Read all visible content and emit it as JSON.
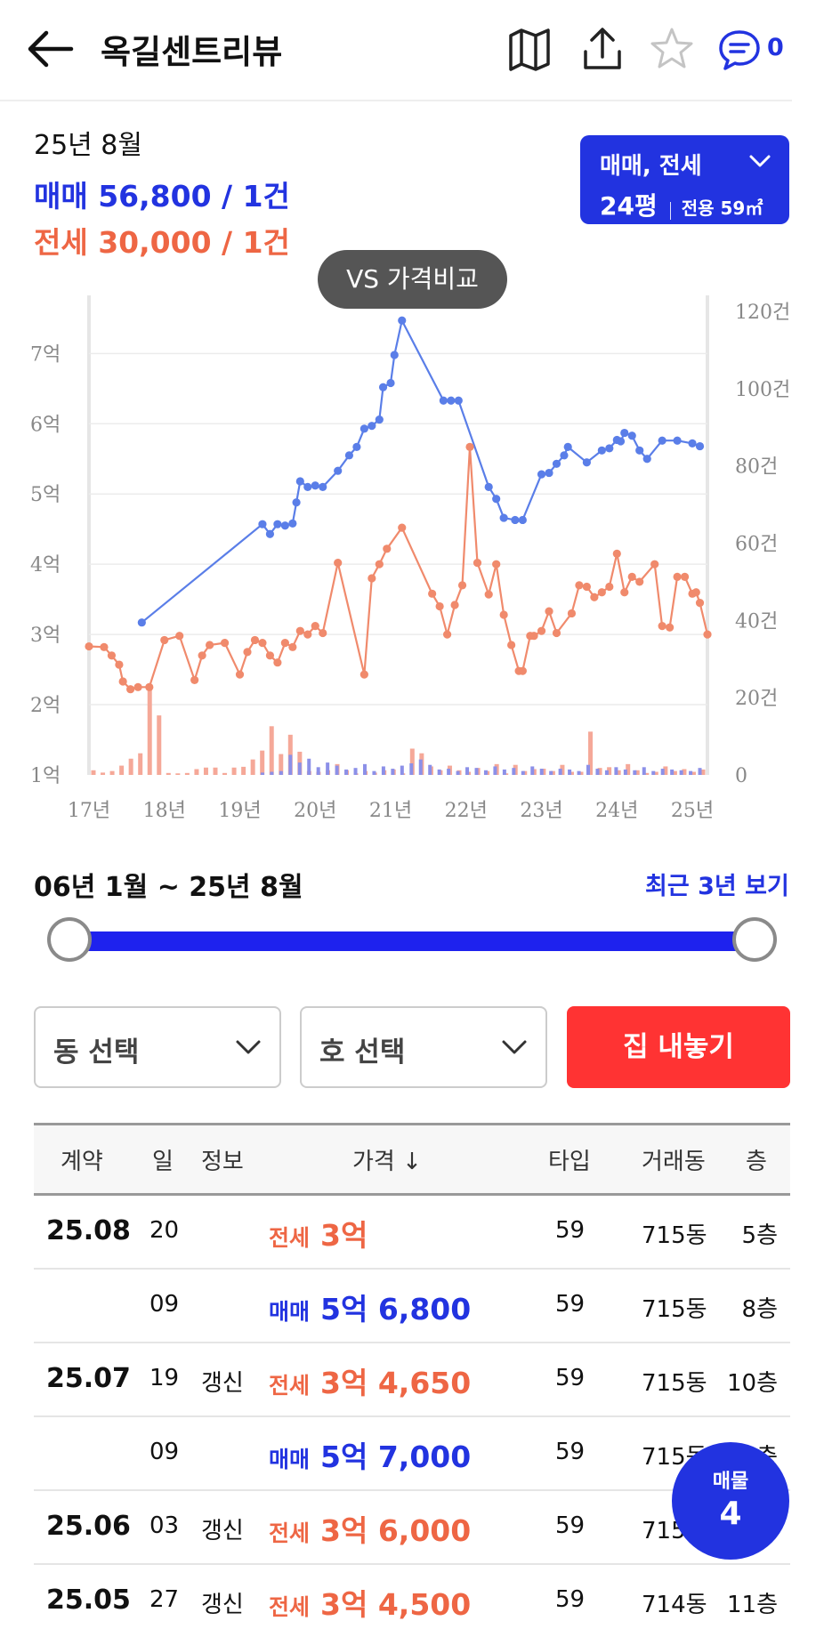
{
  "header": {
    "title": "옥길센트리뷰",
    "chat_count": "0"
  },
  "summary": {
    "date": "25년 8월",
    "sale": "매매 56,800 / 1건",
    "jeonse": "전세 30,000 / 1건"
  },
  "type_selector": {
    "line1": "매매, 전세",
    "pyeong": "24평",
    "area": "전용 59㎡"
  },
  "vs_button": "VS 가격비교",
  "chart_data": {
    "type": "line",
    "x_ticks": [
      "17년",
      "18년",
      "19년",
      "20년",
      "21년",
      "22년",
      "23년",
      "24년",
      "25년"
    ],
    "y_left_ticks": [
      "1억",
      "2억",
      "3억",
      "4억",
      "5억",
      "6억",
      "7억"
    ],
    "y_left_range": [
      1,
      7.6
    ],
    "y_right_ticks": [
      "0",
      "20건",
      "40건",
      "60건",
      "80건",
      "100건",
      "120건"
    ],
    "y_right_range": [
      0,
      120
    ],
    "x_range": [
      2017.0,
      2025.2
    ],
    "grid": true,
    "series": [
      {
        "key": "sale",
        "color": "#5a7ee8",
        "points": [
          [
            2017.7,
            3.17
          ],
          [
            2019.3,
            4.57
          ],
          [
            2019.4,
            4.43
          ],
          [
            2019.5,
            4.57
          ],
          [
            2019.6,
            4.55
          ],
          [
            2019.7,
            4.58
          ],
          [
            2019.75,
            4.88
          ],
          [
            2019.8,
            5.18
          ],
          [
            2019.9,
            5.1
          ],
          [
            2020.0,
            5.12
          ],
          [
            2020.1,
            5.1
          ],
          [
            2020.3,
            5.33
          ],
          [
            2020.45,
            5.55
          ],
          [
            2020.55,
            5.67
          ],
          [
            2020.65,
            5.93
          ],
          [
            2020.75,
            5.97
          ],
          [
            2020.85,
            6.06
          ],
          [
            2020.9,
            6.52
          ],
          [
            2021.0,
            6.58
          ],
          [
            2021.05,
            6.98
          ],
          [
            2021.15,
            7.47
          ],
          [
            2021.7,
            6.33
          ],
          [
            2021.8,
            6.33
          ],
          [
            2021.9,
            6.33
          ],
          [
            2022.3,
            5.1
          ],
          [
            2022.4,
            4.93
          ],
          [
            2022.5,
            4.66
          ],
          [
            2022.65,
            4.63
          ],
          [
            2022.75,
            4.63
          ],
          [
            2023.0,
            5.28
          ],
          [
            2023.1,
            5.3
          ],
          [
            2023.2,
            5.43
          ],
          [
            2023.3,
            5.55
          ],
          [
            2023.35,
            5.67
          ],
          [
            2023.6,
            5.45
          ],
          [
            2023.8,
            5.62
          ],
          [
            2023.9,
            5.65
          ],
          [
            2024.0,
            5.77
          ],
          [
            2024.05,
            5.75
          ],
          [
            2024.1,
            5.87
          ],
          [
            2024.2,
            5.83
          ],
          [
            2024.3,
            5.62
          ],
          [
            2024.4,
            5.5
          ],
          [
            2024.6,
            5.76
          ],
          [
            2024.8,
            5.76
          ],
          [
            2025.0,
            5.72
          ],
          [
            2025.1,
            5.68
          ]
        ]
      },
      {
        "key": "jeonse",
        "color": "#f08a6c",
        "points": [
          [
            2017.0,
            2.83
          ],
          [
            2017.2,
            2.82
          ],
          [
            2017.3,
            2.7
          ],
          [
            2017.4,
            2.57
          ],
          [
            2017.45,
            2.33
          ],
          [
            2017.55,
            2.22
          ],
          [
            2017.65,
            2.25
          ],
          [
            2017.8,
            2.25
          ],
          [
            2018.0,
            2.92
          ],
          [
            2018.2,
            2.98
          ],
          [
            2018.4,
            2.35
          ],
          [
            2018.5,
            2.7
          ],
          [
            2018.6,
            2.85
          ],
          [
            2018.8,
            2.88
          ],
          [
            2019.0,
            2.43
          ],
          [
            2019.1,
            2.75
          ],
          [
            2019.2,
            2.92
          ],
          [
            2019.3,
            2.88
          ],
          [
            2019.4,
            2.7
          ],
          [
            2019.5,
            2.6
          ],
          [
            2019.6,
            2.88
          ],
          [
            2019.7,
            2.82
          ],
          [
            2019.8,
            3.05
          ],
          [
            2019.9,
            3.0
          ],
          [
            2020.0,
            3.12
          ],
          [
            2020.1,
            3.02
          ],
          [
            2020.3,
            4.02
          ],
          [
            2020.65,
            2.43
          ],
          [
            2020.75,
            3.8
          ],
          [
            2020.85,
            4.0
          ],
          [
            2020.95,
            4.22
          ],
          [
            2021.15,
            4.52
          ],
          [
            2021.55,
            3.58
          ],
          [
            2021.65,
            3.4
          ],
          [
            2021.75,
            3.0
          ],
          [
            2021.85,
            3.42
          ],
          [
            2021.95,
            3.7
          ],
          [
            2022.05,
            5.67
          ],
          [
            2022.15,
            4.02
          ],
          [
            2022.3,
            3.57
          ],
          [
            2022.4,
            4.0
          ],
          [
            2022.5,
            3.28
          ],
          [
            2022.6,
            2.85
          ],
          [
            2022.7,
            2.48
          ],
          [
            2022.75,
            2.48
          ],
          [
            2022.85,
            2.98
          ],
          [
            2022.9,
            2.98
          ],
          [
            2023.0,
            3.05
          ],
          [
            2023.1,
            3.33
          ],
          [
            2023.2,
            3.02
          ],
          [
            2023.4,
            3.3
          ],
          [
            2023.5,
            3.7
          ],
          [
            2023.6,
            3.68
          ],
          [
            2023.7,
            3.53
          ],
          [
            2023.8,
            3.6
          ],
          [
            2023.9,
            3.68
          ],
          [
            2024.0,
            4.15
          ],
          [
            2024.1,
            3.6
          ],
          [
            2024.2,
            3.82
          ],
          [
            2024.3,
            3.75
          ],
          [
            2024.5,
            4.0
          ],
          [
            2024.6,
            3.12
          ],
          [
            2024.7,
            3.1
          ],
          [
            2024.8,
            3.82
          ],
          [
            2024.9,
            3.82
          ],
          [
            2025.0,
            3.58
          ],
          [
            2025.05,
            3.6
          ],
          [
            2025.1,
            3.45
          ],
          [
            2025.2,
            3.0
          ]
        ]
      }
    ],
    "volume_bars": {
      "jeonse_heights": [
        1.2,
        0.6,
        1.0,
        2.4,
        4.2,
        5.6,
        22.1,
        15.4,
        0.5,
        0.4,
        0.5,
        1.5,
        1.9,
        1.9,
        0.5,
        1.9,
        2.1,
        4.0,
        6.3,
        12.6,
        5.4,
        10.4,
        6.0,
        1.0,
        0.8,
        1.2,
        2.8,
        1.2,
        0.4,
        1.0,
        0.6,
        1.2,
        1.4,
        0.4,
        6.8,
        5.6,
        2.2,
        1.2,
        2.4,
        1.2,
        0.8,
        1.8,
        1.0,
        2.8,
        0.4,
        2.6,
        1.0,
        1.5,
        1.6,
        1.0,
        2.6,
        0.8,
        0.8,
        11.2,
        1.8,
        2.0,
        1.2,
        2.8,
        1.2,
        0.5,
        0.8,
        2.2,
        1.0,
        1.5,
        0.8,
        1.4
      ],
      "sale_heights": [
        0.6,
        0.8,
        1.0,
        5.2,
        3.2,
        4.2,
        2.0,
        3.2,
        2.4,
        1.4,
        1.8,
        2.8,
        1.0,
        2.2,
        1.6,
        2.4,
        3.0,
        4.0,
        2.6,
        1.4,
        1.6,
        1.0,
        2.0,
        1.8,
        1.2,
        2.2,
        1.4,
        1.8,
        1.0,
        2.2,
        1.6,
        1.0,
        1.6,
        1.4,
        1.0,
        2.6,
        1.6,
        1.2,
        2.0,
        1.4,
        1.2,
        2.0,
        1.0,
        1.6,
        1.4,
        1.2,
        1.0,
        1.8
      ]
    }
  },
  "range": {
    "label": "06년 1월 ~ 25년 8월",
    "recent_link": "최근 3년 보기"
  },
  "filters": {
    "dong": "동 선택",
    "ho": "호 선택",
    "sell_button": "집 내놓기"
  },
  "table": {
    "headers": [
      "계약",
      "일",
      "정보",
      "가격 ↓",
      "타입",
      "거래동",
      "층"
    ],
    "rows": [
      {
        "month": "25.08",
        "day": "20",
        "info": "",
        "kind": "전세",
        "kind_class": "jeon",
        "price": "3억",
        "type": "59",
        "dong": "715동",
        "floor": "5층"
      },
      {
        "month": "",
        "day": "09",
        "info": "",
        "kind": "매매",
        "kind_class": "sale",
        "price": "5억 6,800",
        "type": "59",
        "dong": "715동",
        "floor": "8층"
      },
      {
        "month": "25.07",
        "day": "19",
        "info": "갱신",
        "kind": "전세",
        "kind_class": "jeon",
        "price": "3억 4,650",
        "type": "59",
        "dong": "715동",
        "floor": "10층"
      },
      {
        "month": "",
        "day": "09",
        "info": "",
        "kind": "매매",
        "kind_class": "sale",
        "price": "5억 7,000",
        "type": "59",
        "dong": "715동",
        "floor": "5층"
      },
      {
        "month": "25.06",
        "day": "03",
        "info": "갱신",
        "kind": "전세",
        "kind_class": "jeon",
        "price": "3억 6,000",
        "type": "59",
        "dong": "715동",
        "floor": ""
      },
      {
        "month": "25.05",
        "day": "27",
        "info": "갱신",
        "kind": "전세",
        "kind_class": "jeon",
        "price": "3억 4,500",
        "type": "59",
        "dong": "714동",
        "floor": "11층"
      }
    ]
  },
  "fab": {
    "label": "매물",
    "count": "4"
  },
  "colors": {
    "accent_blue": "#2233e0",
    "jeonse_orange": "#ee6644",
    "sell_red": "#ff3333"
  }
}
